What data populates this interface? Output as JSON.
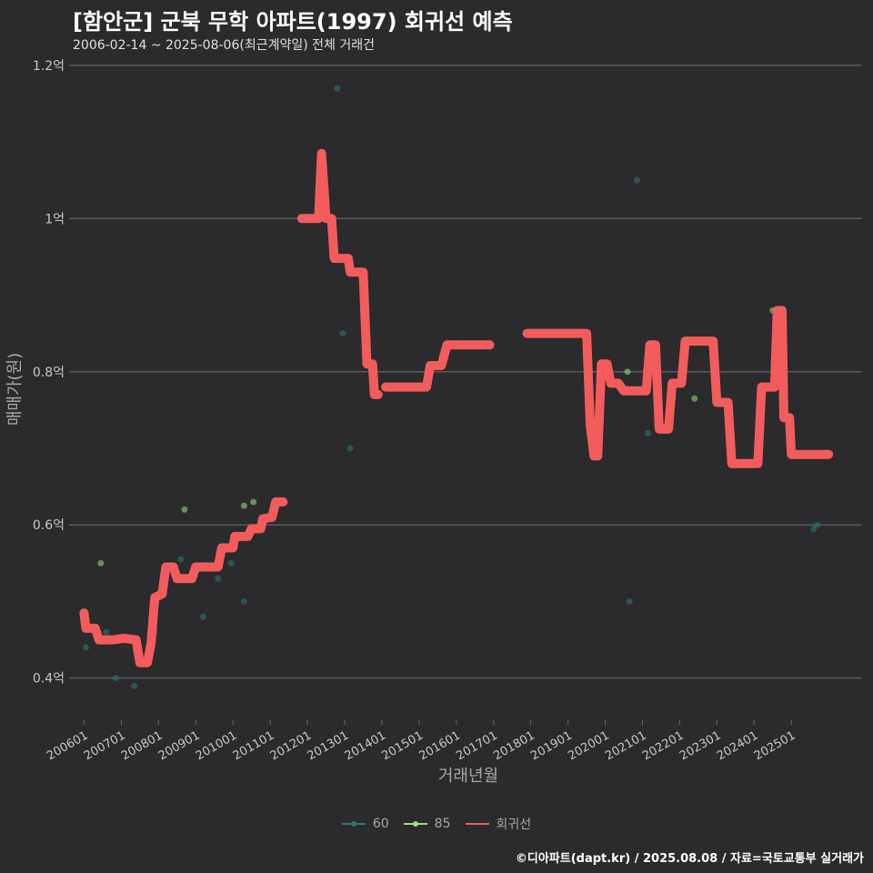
{
  "chart_data": {
    "type": "line",
    "title": "[함안군] 군북 무학 아파트(1997) 회귀선 예측",
    "subtitle": "2006-02-14 ~ 2025-08-06(최근계약일) 전체 거래건",
    "xlabel": "거래년월",
    "ylabel": "매매가(원)",
    "caption": "©디아파트(dapt.kr) / 2025.08.08 / 자료=국토교통부 실거래가",
    "x_range": [
      2005.6,
      2026.9
    ],
    "ylim": [
      0.345,
      1.22
    ],
    "yticks": [
      {
        "value": 0.4,
        "label": "0.4억"
      },
      {
        "value": 0.6,
        "label": "0.6억"
      },
      {
        "value": 0.8,
        "label": "0.8억"
      },
      {
        "value": 1.0,
        "label": "1억"
      },
      {
        "value": 1.2,
        "label": "1.2억"
      }
    ],
    "xticks": [
      {
        "value": 2006.0,
        "label": "200601"
      },
      {
        "value": 2007.0,
        "label": "200701"
      },
      {
        "value": 2008.0,
        "label": "200801"
      },
      {
        "value": 2009.0,
        "label": "200901"
      },
      {
        "value": 2010.0,
        "label": "201001"
      },
      {
        "value": 2011.0,
        "label": "201101"
      },
      {
        "value": 2012.0,
        "label": "201201"
      },
      {
        "value": 2013.0,
        "label": "201301"
      },
      {
        "value": 2014.0,
        "label": "201401"
      },
      {
        "value": 2015.0,
        "label": "201501"
      },
      {
        "value": 2016.0,
        "label": "201601"
      },
      {
        "value": 2017.0,
        "label": "201701"
      },
      {
        "value": 2018.0,
        "label": "201801"
      },
      {
        "value": 2019.0,
        "label": "201901"
      },
      {
        "value": 2020.0,
        "label": "202001"
      },
      {
        "value": 2021.0,
        "label": "202101"
      },
      {
        "value": 2022.0,
        "label": "202201"
      },
      {
        "value": 2023.0,
        "label": "202301"
      },
      {
        "value": 2024.0,
        "label": "202401"
      },
      {
        "value": 2025.0,
        "label": "202501"
      }
    ],
    "legend": [
      {
        "name": "60",
        "color": "#2a7d6b"
      },
      {
        "name": "85",
        "color": "#9ee07a"
      },
      {
        "name": "회귀선",
        "color": "#f25c5c"
      }
    ],
    "series": [
      {
        "name": "60",
        "color": "#2a7d6b",
        "points": [
          [
            2006.05,
            0.44
          ],
          [
            2006.6,
            0.46
          ],
          [
            2006.85,
            0.4
          ],
          [
            2007.35,
            0.39
          ],
          [
            2007.9,
            0.46
          ],
          [
            2008.6,
            0.555
          ],
          [
            2009.2,
            0.48
          ],
          [
            2009.6,
            0.53
          ],
          [
            2009.95,
            0.55
          ],
          [
            2010.3,
            0.5
          ],
          [
            2012.8,
            1.17
          ],
          [
            2012.95,
            0.85
          ],
          [
            2013.15,
            0.7
          ],
          [
            2020.65,
            0.5
          ],
          [
            2020.85,
            1.05
          ],
          [
            2021.15,
            0.72
          ],
          [
            2025.6,
            0.595
          ],
          [
            2025.7,
            0.6
          ]
        ]
      },
      {
        "name": "85",
        "color": "#9ee07a",
        "points": [
          [
            2006.45,
            0.55
          ],
          [
            2008.7,
            0.62
          ],
          [
            2010.3,
            0.625
          ],
          [
            2010.55,
            0.63
          ],
          [
            2020.6,
            0.8
          ],
          [
            2021.4,
            0.73
          ],
          [
            2022.4,
            0.765
          ],
          [
            2024.5,
            0.88
          ]
        ]
      },
      {
        "name": "회귀선",
        "color": "#f25c5c",
        "segments": [
          [
            [
              2006.0,
              0.485
            ],
            [
              2006.05,
              0.465
            ],
            [
              2006.3,
              0.465
            ],
            [
              2006.4,
              0.45
            ],
            [
              2006.8,
              0.45
            ],
            [
              2007.05,
              0.452
            ],
            [
              2007.4,
              0.45
            ],
            [
              2007.5,
              0.42
            ],
            [
              2007.7,
              0.42
            ],
            [
              2007.8,
              0.445
            ],
            [
              2007.9,
              0.505
            ],
            [
              2008.1,
              0.51
            ],
            [
              2008.2,
              0.545
            ],
            [
              2008.4,
              0.545
            ],
            [
              2008.5,
              0.53
            ],
            [
              2008.9,
              0.53
            ],
            [
              2009.0,
              0.545
            ],
            [
              2009.6,
              0.545
            ],
            [
              2009.7,
              0.57
            ],
            [
              2010.0,
              0.57
            ],
            [
              2010.05,
              0.585
            ],
            [
              2010.4,
              0.585
            ],
            [
              2010.5,
              0.595
            ],
            [
              2010.75,
              0.595
            ],
            [
              2010.8,
              0.608
            ],
            [
              2011.05,
              0.61
            ],
            [
              2011.15,
              0.63
            ],
            [
              2011.35,
              0.63
            ]
          ],
          [
            [
              2011.85,
              1.0
            ],
            [
              2012.3,
              1.0
            ],
            [
              2012.38,
              1.085
            ],
            [
              2012.5,
              1.0
            ],
            [
              2012.65,
              1.0
            ],
            [
              2012.72,
              0.948
            ],
            [
              2013.1,
              0.948
            ],
            [
              2013.15,
              0.93
            ],
            [
              2013.5,
              0.93
            ],
            [
              2013.6,
              0.81
            ],
            [
              2013.75,
              0.81
            ],
            [
              2013.8,
              0.77
            ],
            [
              2013.9,
              0.77
            ]
          ],
          [
            [
              2014.1,
              0.78
            ],
            [
              2015.2,
              0.78
            ],
            [
              2015.3,
              0.808
            ],
            [
              2015.6,
              0.808
            ],
            [
              2015.75,
              0.835
            ],
            [
              2016.9,
              0.835
            ]
          ],
          [
            [
              2017.9,
              0.85
            ],
            [
              2019.5,
              0.85
            ],
            [
              2019.6,
              0.73
            ],
            [
              2019.7,
              0.69
            ],
            [
              2019.8,
              0.69
            ],
            [
              2019.9,
              0.81
            ],
            [
              2020.05,
              0.81
            ],
            [
              2020.15,
              0.785
            ],
            [
              2020.35,
              0.785
            ],
            [
              2020.5,
              0.775
            ],
            [
              2021.1,
              0.775
            ],
            [
              2021.2,
              0.835
            ],
            [
              2021.35,
              0.835
            ],
            [
              2021.45,
              0.725
            ],
            [
              2021.7,
              0.725
            ],
            [
              2021.8,
              0.785
            ],
            [
              2022.05,
              0.785
            ],
            [
              2022.15,
              0.84
            ],
            [
              2022.9,
              0.84
            ],
            [
              2023.0,
              0.76
            ],
            [
              2023.3,
              0.76
            ],
            [
              2023.4,
              0.68
            ],
            [
              2024.1,
              0.68
            ],
            [
              2024.2,
              0.78
            ],
            [
              2024.55,
              0.78
            ],
            [
              2024.62,
              0.88
            ],
            [
              2024.75,
              0.88
            ],
            [
              2024.8,
              0.74
            ],
            [
              2024.95,
              0.74
            ],
            [
              2025.0,
              0.692
            ],
            [
              2026.0,
              0.692
            ]
          ]
        ]
      }
    ]
  }
}
